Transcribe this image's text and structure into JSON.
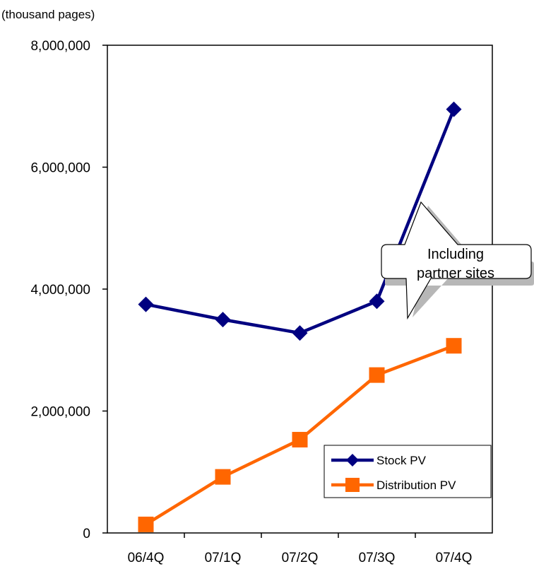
{
  "chart_data": {
    "type": "line",
    "ylabel": "(thousand pages)",
    "categories": [
      "06/4Q",
      "07/1Q",
      "07/2Q",
      "07/3Q",
      "07/4Q"
    ],
    "ylim": [
      0,
      8000000
    ],
    "yticks": [
      0,
      2000000,
      4000000,
      6000000,
      8000000
    ],
    "ytick_labels": [
      "0",
      "2,000,000",
      "4,000,000",
      "6,000,000",
      "8,000,000"
    ],
    "grid": false,
    "legend_position": "bottom-right",
    "series": [
      {
        "name": "Stock PV",
        "values": [
          3750000,
          3500000,
          3280000,
          3800000,
          6950000
        ],
        "color": "#000080",
        "marker": "diamond"
      },
      {
        "name": "Distribution PV",
        "values": [
          140000,
          920000,
          1530000,
          2590000,
          3070000
        ],
        "color": "#ff6600",
        "marker": "square"
      }
    ],
    "annotations": [
      {
        "lines": [
          "Including",
          "partner sites"
        ],
        "target_category": "07/4Q"
      }
    ]
  }
}
